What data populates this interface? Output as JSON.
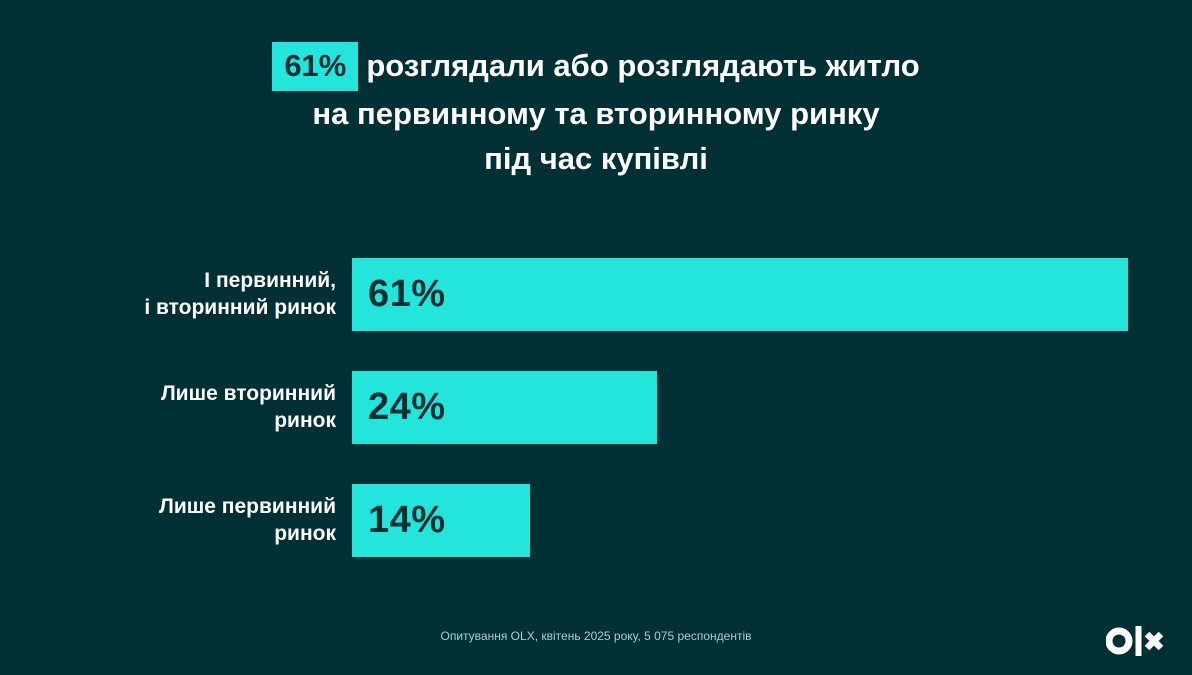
{
  "colors": {
    "background": "#002f34",
    "accent": "#23e5db",
    "title_text": "#ffffff",
    "highlight_background": "#23e5db",
    "highlight_text": "#002f34",
    "bar_value_text": "#002f34",
    "footer_text": "#a8cfcc",
    "logo_color": "#ffffff"
  },
  "title": {
    "highlight": "61%",
    "line1": "розглядали або розглядають житло",
    "line2": "на первинному та вторинному ринку",
    "line3": "під час купівлі"
  },
  "chart_data": {
    "type": "bar",
    "orientation": "horizontal",
    "title": "61% розглядали або розглядають житло на первинному та вторинному ринку під час купівлі",
    "categories": [
      "І первинний,\nі вторинний ринок",
      "Лише вторинний\nринок",
      "Лише первинний\nринок"
    ],
    "values": [
      61,
      24,
      14
    ],
    "value_labels": [
      "61%",
      "24%",
      "14%"
    ],
    "unit": "%",
    "xlim": [
      0,
      61
    ],
    "grid": false,
    "legend": false
  },
  "footer": {
    "source": "Опитування OLX, квітень 2025 року, 5 075 респондентів"
  },
  "logo": {
    "label": "olx"
  }
}
